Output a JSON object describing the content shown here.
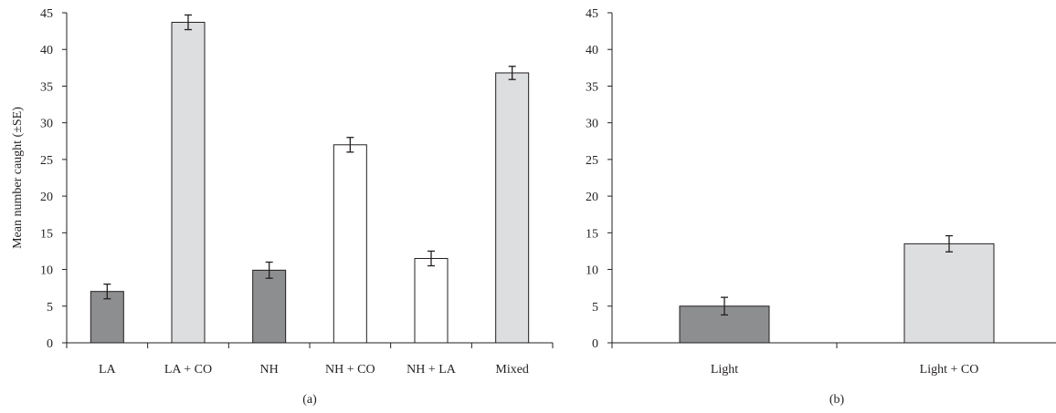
{
  "chart_data": [
    {
      "type": "bar",
      "panel_label": "(a)",
      "ylabel": "Mean number caught (±SE)",
      "xlabel": "",
      "ylim": [
        0,
        45
      ],
      "yticks": [
        0,
        5,
        10,
        15,
        20,
        25,
        30,
        35,
        40,
        45
      ],
      "categories": [
        "LA",
        "LA + CO",
        "NH",
        "NH + CO",
        "NH + LA",
        "Mixed"
      ],
      "values": [
        7.0,
        43.7,
        9.9,
        27.0,
        11.5,
        36.8
      ],
      "errors": [
        1.0,
        1.0,
        1.1,
        1.0,
        1.0,
        0.9
      ],
      "bar_colors": [
        "#8d8e90",
        "#dddee0",
        "#8d8e90",
        "#ffffff",
        "#ffffff",
        "#dddee0"
      ],
      "grid": false,
      "legend": "none"
    },
    {
      "type": "bar",
      "panel_label": "(b)",
      "ylabel": "",
      "xlabel": "",
      "ylim": [
        0,
        45
      ],
      "yticks": [
        0,
        5,
        10,
        15,
        20,
        25,
        30,
        35,
        40,
        45
      ],
      "categories": [
        "Light",
        "Light + CO"
      ],
      "values": [
        5.0,
        13.5
      ],
      "errors": [
        1.2,
        1.1
      ],
      "bar_colors": [
        "#8d8e90",
        "#dddee0"
      ],
      "grid": false,
      "legend": "none"
    }
  ],
  "colors": {
    "axis": "#231f20",
    "bar_stroke": "#231f20"
  }
}
